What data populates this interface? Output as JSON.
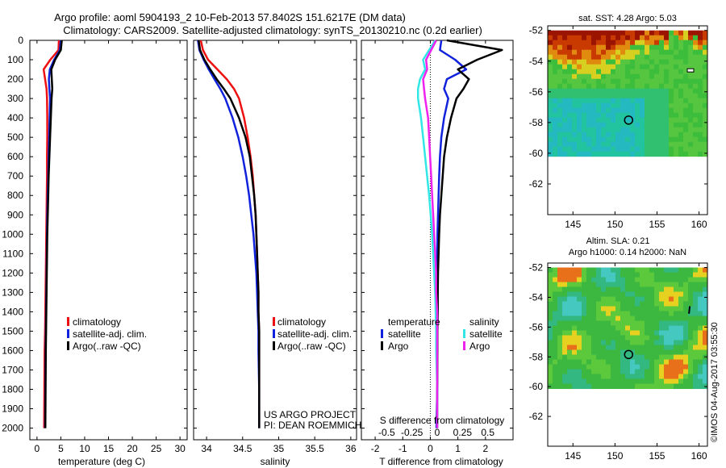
{
  "header": {
    "title_line1": "Argo profile: aoml 5904193_2 10-Feb-2013 57.8402S 151.6217E (DM data)",
    "title_line2": "Climatology: CARS2009. Satellite-adjusted climatology: synTS_20130210.nc (0.2d earlier)"
  },
  "colors": {
    "climatology": "#ee1111",
    "satellite": "#1122dd",
    "argo": "#000000",
    "salinity_satellite": "#33e6e6",
    "salinity_argo": "#ee22ee"
  },
  "depth_axis": {
    "ticks": [
      0,
      100,
      200,
      300,
      400,
      500,
      600,
      700,
      800,
      900,
      1000,
      1100,
      1200,
      1300,
      1400,
      1500,
      1600,
      1700,
      1800,
      1900,
      2000
    ],
    "range": [
      0,
      2060
    ]
  },
  "panels": {
    "temperature": {
      "xlabel": "temperature (deg C)",
      "xticks": [
        0,
        5,
        10,
        15,
        20,
        25,
        30
      ],
      "xrange": [
        -1.5,
        31.5
      ],
      "legend": [
        "climatology",
        "satellite-adj. clim.",
        "Argo(..raw -QC)"
      ]
    },
    "salinity": {
      "xlabel": "salinity",
      "xticks": [
        "34",
        "34.5",
        "35",
        "35.5",
        "36"
      ],
      "xtick_values": [
        34,
        34.5,
        35,
        35.5,
        36
      ],
      "xrange": [
        33.82,
        36.08
      ],
      "legend": [
        "climatology",
        "satellite-adj. clim.",
        "Argo(..raw -QC)"
      ],
      "credit_line1": "US ARGO PROJECT",
      "credit_line2": "PI: DEAN ROEMMICH"
    },
    "difference": {
      "top_label": "S difference from climatology",
      "top_ticks": [
        "-0.5",
        "-0.25",
        "0",
        "0.25",
        "0.5"
      ],
      "top_tick_values": [
        -0.5,
        -0.25,
        0,
        0.25,
        0.5
      ],
      "top_range": [
        -0.75,
        0.75
      ],
      "xlabel": "T difference from climatology",
      "xticks": [
        "-2",
        "-1",
        "0",
        "1",
        "2"
      ],
      "xtick_values": [
        -2,
        -1,
        0,
        1,
        2
      ],
      "xrange": [
        -2.5,
        3.0
      ],
      "legend_temperature_title": "temperature",
      "legend_salinity_title": "salinity",
      "legend_satellite": "satellite",
      "legend_argo": "Argo"
    }
  },
  "maps": {
    "sst": {
      "title": "sat. SST: 4.28 Argo: 5.03",
      "yticks": [
        "-52",
        "-54",
        "-56",
        "-58",
        "-60",
        "-62"
      ],
      "ytick_values": [
        -52,
        -54,
        -56,
        -58,
        -60,
        -62
      ],
      "xticks": [
        "145",
        "150",
        "155",
        "160"
      ],
      "xtick_values": [
        145,
        150,
        155,
        160
      ],
      "lon_range": [
        142,
        161
      ],
      "lat_range": [
        -64,
        -51.7
      ]
    },
    "sla": {
      "title_line1": "Altim. SLA: 0.21",
      "title_line2": "Argo h1000: 0.14 h2000: NaN",
      "yticks": [
        "-52",
        "-54",
        "-56",
        "-58",
        "-60",
        "-62"
      ],
      "ytick_values": [
        -52,
        -54,
        -56,
        -58,
        -60,
        -62
      ],
      "xticks": [
        "145",
        "150",
        "155",
        "160"
      ],
      "xtick_values": [
        145,
        150,
        155,
        160
      ],
      "lon_range": [
        142,
        161
      ],
      "lat_range": [
        -64,
        -51.7
      ]
    },
    "float_position": {
      "lon": 151.6217,
      "lat": -57.8402
    }
  },
  "footer": {
    "stamp": "©IMOS 04-Aug-2017 03:55:30"
  },
  "chart_data": [
    {
      "type": "line",
      "id": "temperature",
      "xlabel": "temperature (deg C)",
      "ylabel": "",
      "xlim": [
        -1.5,
        31.5
      ],
      "ylim": [
        0,
        2060
      ],
      "series": [
        {
          "name": "climatology",
          "x": [
            4.6,
            4.5,
            2.8,
            1.4,
            1.7,
            2.0,
            2.1,
            2.15,
            2.15,
            2.1,
            2.1,
            2.05,
            2.0,
            1.95,
            1.9,
            1.85,
            1.8,
            1.75,
            1.7,
            1.6,
            1.55,
            1.5
          ],
          "y": [
            0,
            50,
            100,
            150,
            200,
            250,
            300,
            400,
            500,
            600,
            700,
            800,
            900,
            1000,
            1100,
            1200,
            1300,
            1400,
            1500,
            1600,
            1800,
            2000
          ]
        },
        {
          "name": "satellite-adj. clim.",
          "x": [
            5.0,
            4.8,
            3.6,
            2.7,
            2.5,
            2.6,
            2.75,
            2.65,
            2.55,
            2.45,
            2.35,
            2.25,
            2.15,
            2.1,
            2.05,
            2.0,
            1.95,
            1.9,
            1.85,
            1.8,
            1.75,
            1.7
          ],
          "y": [
            0,
            50,
            100,
            150,
            200,
            250,
            300,
            400,
            500,
            600,
            700,
            800,
            900,
            1000,
            1100,
            1200,
            1300,
            1400,
            1500,
            1600,
            1800,
            2000
          ]
        },
        {
          "name": "Argo(..raw -QC)",
          "x": [
            5.2,
            5.0,
            3.8,
            3.0,
            3.1,
            3.2,
            3.05,
            2.9,
            2.75,
            2.6,
            2.45,
            2.35,
            2.25,
            2.15,
            2.1,
            2.05,
            2.0,
            1.95,
            1.9,
            1.85,
            1.8,
            1.75
          ],
          "y": [
            0,
            50,
            100,
            150,
            200,
            250,
            300,
            400,
            500,
            600,
            700,
            800,
            900,
            1000,
            1100,
            1200,
            1300,
            1400,
            1500,
            1600,
            1800,
            2000
          ]
        }
      ]
    },
    {
      "type": "line",
      "id": "salinity",
      "xlabel": "salinity",
      "xlim": [
        33.82,
        36.08
      ],
      "ylim": [
        0,
        2060
      ],
      "series": [
        {
          "name": "climatology",
          "x": [
            33.92,
            33.95,
            34.02,
            34.15,
            34.28,
            34.38,
            34.45,
            34.52,
            34.57,
            34.61,
            34.64,
            34.66,
            34.68,
            34.69,
            34.7,
            34.71,
            34.72,
            34.72,
            34.73,
            34.73,
            34.73,
            34.73
          ],
          "y": [
            0,
            50,
            100,
            150,
            200,
            250,
            300,
            400,
            500,
            600,
            700,
            800,
            900,
            1000,
            1100,
            1200,
            1300,
            1400,
            1500,
            1600,
            1800,
            2000
          ]
        },
        {
          "name": "satellite-adj. clim.",
          "x": [
            33.88,
            33.9,
            33.96,
            34.03,
            34.11,
            34.19,
            34.26,
            34.36,
            34.44,
            34.5,
            34.55,
            34.59,
            34.62,
            34.65,
            34.67,
            34.69,
            34.7,
            34.71,
            34.72,
            34.72,
            34.73,
            34.73
          ],
          "y": [
            0,
            50,
            100,
            150,
            200,
            250,
            300,
            400,
            500,
            600,
            700,
            800,
            900,
            1000,
            1100,
            1200,
            1300,
            1400,
            1500,
            1600,
            1800,
            2000
          ]
        },
        {
          "name": "Argo(..raw -QC)",
          "x": [
            33.89,
            33.91,
            33.97,
            34.05,
            34.14,
            34.24,
            34.33,
            34.45,
            34.54,
            34.6,
            34.63,
            34.66,
            34.68,
            34.69,
            34.7,
            34.71,
            34.72,
            34.72,
            34.73,
            34.73,
            34.73,
            34.73
          ],
          "y": [
            0,
            50,
            100,
            150,
            200,
            250,
            300,
            400,
            500,
            600,
            700,
            800,
            900,
            1000,
            1100,
            1200,
            1300,
            1400,
            1500,
            1600,
            1800,
            2000
          ]
        }
      ]
    },
    {
      "type": "line",
      "id": "difference",
      "xlabel": "T difference from climatology",
      "x2label": "S difference from climatology",
      "xlim": [
        -2.5,
        3.0
      ],
      "x2lim": [
        -0.75,
        0.75
      ],
      "ylim": [
        0,
        2060
      ],
      "series": [
        {
          "name": "T satellite",
          "axis": "T",
          "x": [
            0.4,
            0.35,
            0.9,
            1.3,
            0.6,
            0.5,
            0.65,
            0.5,
            0.4,
            0.35,
            0.32,
            0.3,
            0.28,
            0.26,
            0.25,
            0.25,
            0.25,
            0.25,
            0.25,
            0.25,
            0.25,
            0.22
          ],
          "y": [
            0,
            50,
            100,
            150,
            200,
            250,
            300,
            400,
            500,
            600,
            700,
            800,
            900,
            1000,
            1100,
            1200,
            1300,
            1400,
            1500,
            1600,
            1800,
            2000
          ]
        },
        {
          "name": "T Argo",
          "axis": "T",
          "x": [
            0.6,
            2.6,
            1.7,
            1.0,
            1.4,
            1.2,
            0.95,
            0.75,
            0.6,
            0.5,
            0.45,
            0.4,
            0.35,
            0.32,
            0.3,
            0.28,
            0.27,
            0.27,
            0.26,
            0.26,
            0.25,
            0.25
          ],
          "y": [
            0,
            50,
            100,
            150,
            200,
            250,
            300,
            400,
            500,
            600,
            700,
            800,
            900,
            1000,
            1100,
            1200,
            1300,
            1400,
            1500,
            1600,
            1800,
            2000
          ]
        },
        {
          "name": "S satellite",
          "axis": "S",
          "x": [
            -0.02,
            -0.08,
            -0.14,
            -0.12,
            -0.17,
            -0.19,
            -0.19,
            -0.16,
            -0.14,
            -0.12,
            -0.1,
            -0.08,
            -0.065,
            -0.05,
            -0.04,
            -0.03,
            -0.02,
            -0.015,
            -0.01,
            -0.01,
            0.0,
            0.0
          ],
          "y": [
            0,
            50,
            100,
            150,
            200,
            250,
            300,
            400,
            500,
            600,
            700,
            800,
            900,
            1000,
            1100,
            1200,
            1300,
            1400,
            1500,
            1600,
            1800,
            2000
          ]
        },
        {
          "name": "S Argo",
          "axis": "S",
          "x": [
            -0.01,
            -0.06,
            -0.11,
            -0.1,
            -0.14,
            -0.13,
            -0.12,
            -0.09,
            -0.08,
            -0.07,
            -0.06,
            -0.05,
            -0.04,
            -0.03,
            -0.02,
            -0.01,
            -0.01,
            0.0,
            0.0,
            0.0,
            0.0,
            0.0
          ],
          "y": [
            0,
            50,
            100,
            150,
            200,
            250,
            300,
            400,
            500,
            600,
            700,
            800,
            900,
            1000,
            1100,
            1200,
            1300,
            1400,
            1500,
            1600,
            1800,
            2000
          ]
        }
      ]
    },
    {
      "type": "heatmap",
      "id": "sst-map",
      "title": "sat. SST: 4.28 Argo: 5.03",
      "xlim": [
        142,
        161
      ],
      "ylim": [
        -64,
        -51.7
      ],
      "data_extent_lat": [
        -60,
        -52
      ]
    },
    {
      "type": "heatmap",
      "id": "sla-map",
      "title": "Altim. SLA: 0.21",
      "xlim": [
        142,
        161
      ],
      "ylim": [
        -64,
        -51.7
      ],
      "data_extent_lat": [
        -60,
        -52
      ]
    }
  ]
}
